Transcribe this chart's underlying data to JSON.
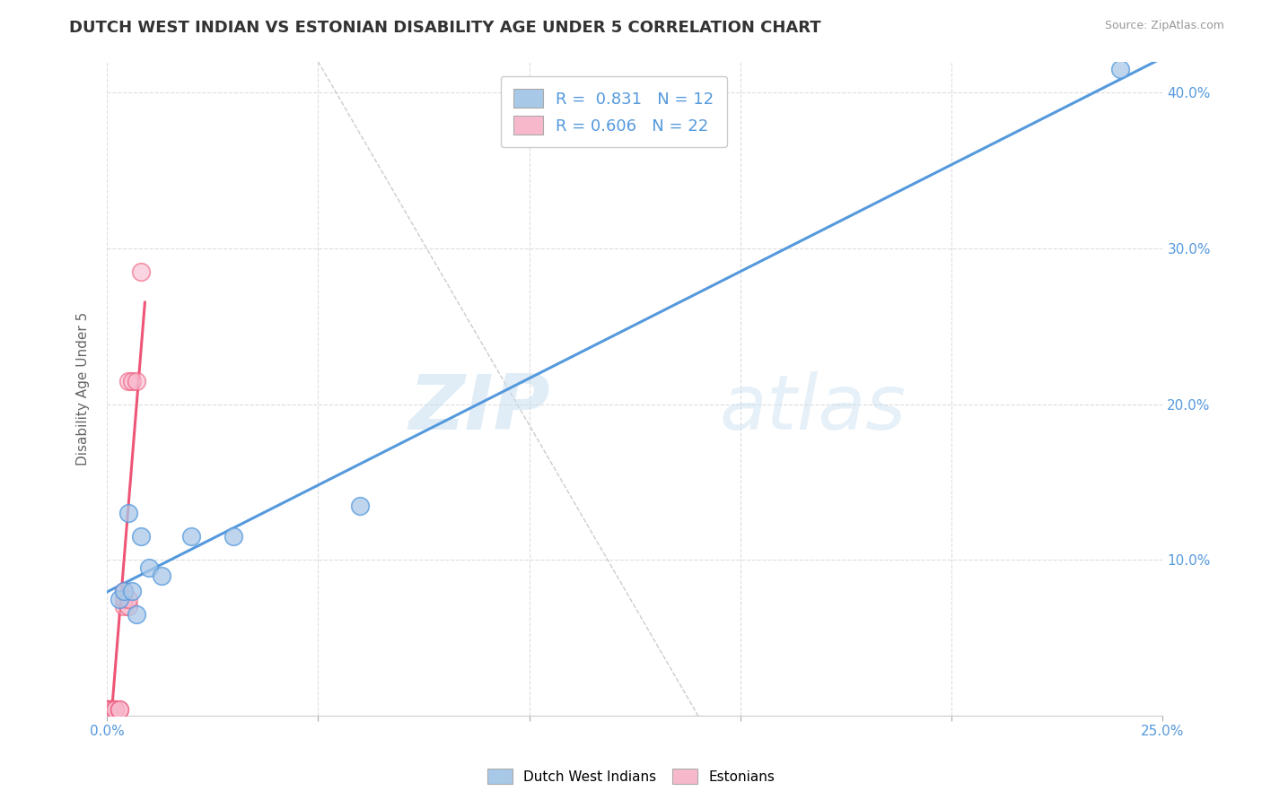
{
  "title": "DUTCH WEST INDIAN VS ESTONIAN DISABILITY AGE UNDER 5 CORRELATION CHART",
  "source": "Source: ZipAtlas.com",
  "ylabel": "Disability Age Under 5",
  "xlim": [
    0.0,
    0.25
  ],
  "ylim": [
    0.0,
    0.42
  ],
  "x_ticks": [
    0.0,
    0.05,
    0.1,
    0.15,
    0.2,
    0.25
  ],
  "x_tick_labels": [
    "0.0%",
    "",
    "",
    "",
    "",
    "25.0%"
  ],
  "y_ticks": [
    0.0,
    0.1,
    0.2,
    0.3,
    0.4
  ],
  "y_tick_labels_right": [
    "",
    "10.0%",
    "20.0%",
    "30.0%",
    "40.0%"
  ],
  "dutch_x": [
    0.003,
    0.004,
    0.005,
    0.006,
    0.007,
    0.008,
    0.01,
    0.013,
    0.02,
    0.03,
    0.06,
    0.24
  ],
  "dutch_y": [
    0.075,
    0.08,
    0.13,
    0.08,
    0.065,
    0.115,
    0.095,
    0.09,
    0.115,
    0.115,
    0.135,
    0.415
  ],
  "estonian_x": [
    0.0002,
    0.0002,
    0.0005,
    0.0005,
    0.0008,
    0.0008,
    0.001,
    0.001,
    0.001,
    0.002,
    0.002,
    0.003,
    0.003,
    0.004,
    0.004,
    0.004,
    0.005,
    0.005,
    0.005,
    0.006,
    0.007,
    0.008
  ],
  "estonian_y": [
    0.004,
    0.004,
    0.004,
    0.004,
    0.004,
    0.004,
    0.004,
    0.004,
    0.004,
    0.004,
    0.004,
    0.004,
    0.004,
    0.07,
    0.075,
    0.08,
    0.07,
    0.075,
    0.215,
    0.215,
    0.215,
    0.285
  ],
  "dutch_color": "#a8c8e8",
  "estonian_color": "#f8b8cc",
  "dutch_line_color": "#5599dd",
  "estonian_line_color": "#ee5577",
  "dutch_R": 0.831,
  "dutch_N": 12,
  "estonian_R": 0.606,
  "estonian_N": 22,
  "watermark_zip": "ZIP",
  "watermark_atlas": "atlas",
  "background_color": "#ffffff",
  "grid_color": "#dddddd",
  "title_fontsize": 13,
  "axis_label_fontsize": 11,
  "tick_fontsize": 11,
  "legend_fontsize": 13
}
